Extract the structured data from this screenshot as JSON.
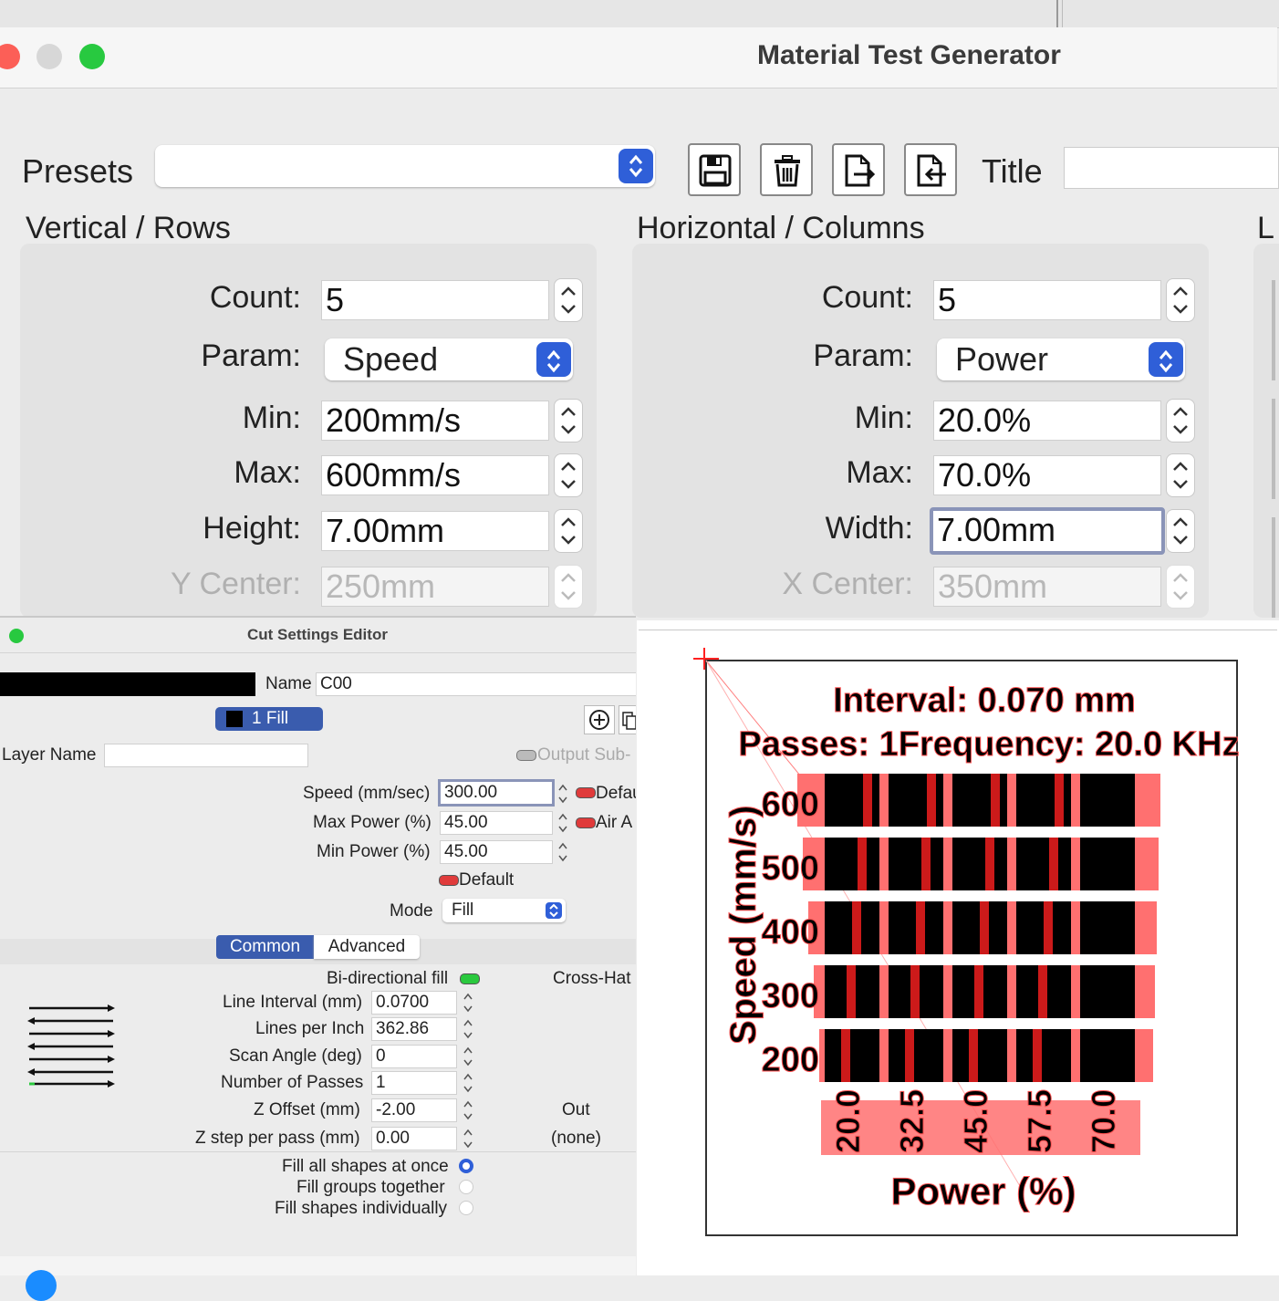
{
  "material_test": {
    "window_title": "Material Test Generator",
    "presets_label": "Presets",
    "presets_value": "",
    "toolbar_icons": [
      "save-icon",
      "trash-icon",
      "import-icon",
      "export-icon"
    ],
    "title_label": "Title",
    "title_value": "",
    "cut_off_section_letter": "L",
    "vertical": {
      "heading": "Vertical / Rows",
      "count_label": "Count:",
      "count_value": "5",
      "param_label": "Param:",
      "param_value": "Speed",
      "min_label": "Min:",
      "min_value": "200mm/s",
      "max_label": "Max:",
      "max_value": "600mm/s",
      "size_label": "Height:",
      "size_value": "7.00mm",
      "center_label": "Y Center:",
      "center_value": "250mm"
    },
    "horizontal": {
      "heading": "Horizontal / Columns",
      "count_label": "Count:",
      "count_value": "5",
      "param_label": "Param:",
      "param_value": "Power",
      "min_label": "Min:",
      "min_value": "20.0%",
      "max_label": "Max:",
      "max_value": "70.0%",
      "size_label": "Width:",
      "size_value": "7.00mm",
      "center_label": "X Center:",
      "center_value": "350mm"
    }
  },
  "cut_settings": {
    "window_title": "Cut Settings Editor",
    "name_label": "Name",
    "name_value": "C00",
    "layer_tab": "1 Fill",
    "layer_name_label": "Layer Name",
    "layer_name_value": "",
    "output_sub_label": "Output Sub-",
    "speed_label": "Speed (mm/sec)",
    "speed_value": "300.00",
    "default_label_1": "Defau",
    "max_power_label": "Max Power (%)",
    "max_power_value": "45.00",
    "air_label": "Air A",
    "min_power_label": "Min Power (%)",
    "min_power_value": "45.00",
    "default_label_2": "Default",
    "mode_label": "Mode",
    "mode_value": "Fill",
    "tab_common": "Common",
    "tab_advanced": "Advanced",
    "bidir_label": "Bi-directional fill",
    "cross_hatch_label": "Cross-Hat",
    "line_interval_label": "Line Interval (mm)",
    "line_interval_value": "0.0700",
    "lpi_label": "Lines per Inch",
    "lpi_value": "362.86",
    "scan_angle_label": "Scan Angle (deg)",
    "scan_angle_value": "0",
    "passes_label": "Number of Passes",
    "passes_value": "1",
    "z_offset_label": "Z Offset (mm)",
    "z_offset_value": "-2.00",
    "out_label": "Out",
    "z_step_label": "Z step per pass (mm)",
    "z_step_value": "0.00",
    "none_label": "(none)",
    "fill_all_label": "Fill all shapes at once",
    "fill_groups_label": "Fill groups together",
    "fill_individual_label": "Fill shapes individually",
    "fill_selected": "Fill all shapes at once"
  },
  "preview": {
    "interval_text": "Interval:  0.070 mm",
    "passes_text": "Passes:  1Frequency:  20.0 KHz",
    "y_axis_label": "Speed (mm/s)",
    "x_axis_label": "Power (%)",
    "rows": [
      "600",
      "500",
      "400",
      "300",
      "200"
    ],
    "columns": [
      "20.0",
      "32.5",
      "45.0",
      "57.5",
      "70.0"
    ],
    "colors": {
      "label_bg": "#ff7070",
      "cell": "#000000",
      "accent": "#ff2020"
    }
  }
}
